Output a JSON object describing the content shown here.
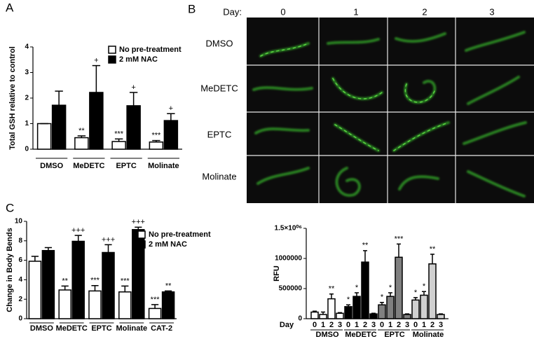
{
  "panel_b": {
    "label": "B",
    "day_label": "Day:",
    "days": [
      "0",
      "1",
      "2",
      "3"
    ],
    "rows": [
      "DMSO",
      "MeDETC",
      "EPTC",
      "Molinate"
    ]
  },
  "chart_data": [
    {
      "type": "bar",
      "panel_label": "A",
      "y_label": "Total GSH relative to control",
      "categories": [
        "DMSO",
        "MeDETC",
        "EPTC",
        "Molinate"
      ],
      "series": [
        {
          "name": "No pre-treatment",
          "color": "#ffffff",
          "values": [
            1,
            0.45,
            0.3,
            0.28
          ],
          "errors": [
            0,
            0.07,
            0.1,
            0.06
          ],
          "annotations": [
            null,
            "**",
            "***",
            "***"
          ]
        },
        {
          "name": "2 mM NAC",
          "color": "#000000",
          "values": [
            1.72,
            2.22,
            1.7,
            1.12
          ],
          "errors": [
            0.55,
            1.05,
            0.52,
            0.27
          ],
          "annotations": [
            null,
            "+",
            "+",
            "+"
          ]
        }
      ],
      "ylim": [
        0,
        4
      ],
      "yticks": [
        0,
        1,
        2,
        3,
        4
      ],
      "legend": "top-right"
    },
    {
      "type": "bar",
      "panel_label": "C",
      "y_label": "Change in Body Bends",
      "categories": [
        "DMSO",
        "MeDETC",
        "EPTC",
        "Molinate",
        "CAT-2"
      ],
      "series": [
        {
          "name": "No pre-treatment",
          "color": "#ffffff",
          "values": [
            5.9,
            2.95,
            2.85,
            2.75,
            1.05
          ],
          "errors": [
            0.5,
            0.4,
            0.55,
            0.6,
            0.4
          ],
          "annotations": [
            null,
            "**",
            "***",
            "***",
            "***"
          ]
        },
        {
          "name": "2 mM NAC",
          "color": "#000000",
          "values": [
            7.0,
            7.95,
            6.8,
            9.15,
            2.75
          ],
          "errors": [
            0.3,
            0.6,
            0.8,
            0.25,
            0.1
          ],
          "annotations": [
            null,
            "+++",
            "+++",
            "+++",
            "**"
          ]
        }
      ],
      "ylim": [
        0,
        10
      ],
      "yticks": [
        0,
        2,
        4,
        6,
        8,
        10
      ],
      "legend": "top-right"
    },
    {
      "type": "bar",
      "y_label": "RFU",
      "x_label": "Day",
      "categories": [
        "0",
        "1",
        "2",
        "3"
      ],
      "groups": [
        "DMSO",
        "MeDETC",
        "EPTC",
        "Molinate"
      ],
      "series": [
        {
          "color": "#ffffff",
          "values": [
            110000,
            70000,
            330000,
            90000
          ],
          "errors": [
            15000,
            40000,
            80000,
            10000
          ],
          "annotations": [
            null,
            null,
            "**",
            null
          ]
        },
        {
          "color": "#000000",
          "values": [
            200000,
            370000,
            940000,
            80000
          ],
          "errors": [
            30000,
            60000,
            190000,
            10000
          ],
          "annotations": [
            "*",
            "*",
            "**",
            null
          ]
        },
        {
          "color": "#808080",
          "values": [
            230000,
            370000,
            1020000,
            70000
          ],
          "errors": [
            40000,
            60000,
            220000,
            10000
          ],
          "annotations": [
            "*",
            "*",
            "***",
            null
          ]
        },
        {
          "color": "#d0d0d0",
          "values": [
            310000,
            390000,
            910000,
            70000
          ],
          "errors": [
            40000,
            60000,
            160000,
            10000
          ],
          "annotations": [
            "*",
            "*",
            "**",
            null
          ]
        }
      ],
      "ylim": [
        0,
        1500000
      ],
      "yticks": [
        0,
        500000,
        1000000,
        {
          "value": 1500000,
          "label": "1.5×10⁰⁶"
        }
      ]
    }
  ]
}
